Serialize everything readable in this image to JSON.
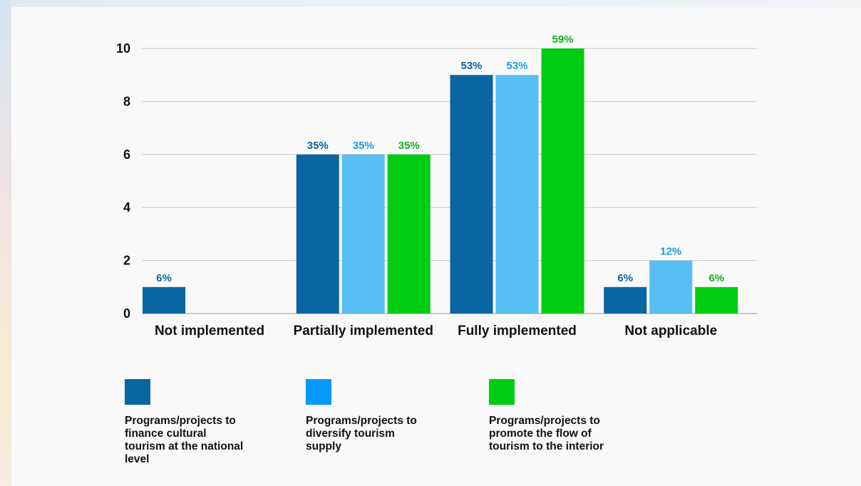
{
  "chart_data": {
    "type": "bar",
    "title": "",
    "xlabel": "",
    "ylabel": "",
    "ylim": [
      0,
      10
    ],
    "yticks": [
      "0",
      "2",
      "4",
      "6",
      "8",
      "10"
    ],
    "grid": true,
    "legend_position": "bottom",
    "categories": [
      "Not implemented",
      "Partially implemented",
      "Fully implemented",
      "Not applicable"
    ],
    "series": [
      {
        "name": "Programs/projects to finance cultural tourism at the national level",
        "color": "#0a65a3",
        "values": [
          1,
          6,
          9,
          1
        ],
        "labels": [
          "6%",
          "35%",
          "53%",
          "6%"
        ]
      },
      {
        "name": "Programs/projects to diversify tourism supply",
        "color": "#57bff4",
        "label_color": "#199ee0",
        "values": [
          0,
          6,
          9,
          2
        ],
        "labels": [
          "",
          "35%",
          "53%",
          "12%"
        ]
      },
      {
        "name": "Programs/projects to promote the flow of tourism to the interior",
        "color": "#00cc11",
        "label_color": "#16b01c",
        "values": [
          0,
          6,
          10,
          1
        ],
        "labels": [
          "",
          "35%",
          "59%",
          "6%"
        ]
      }
    ]
  },
  "legend": {
    "items": [
      {
        "text": "Programs/projects to\nfinance cultural\ntourism at the national\nlevel",
        "color": "#0a65a3"
      },
      {
        "text": "Programs/projects to\ndiversify tourism\nsupply",
        "color": "#0099ff"
      },
      {
        "text": "Programs/projects to\npromote the flow of\ntourism to the interior",
        "color": "#00cc11"
      }
    ]
  }
}
